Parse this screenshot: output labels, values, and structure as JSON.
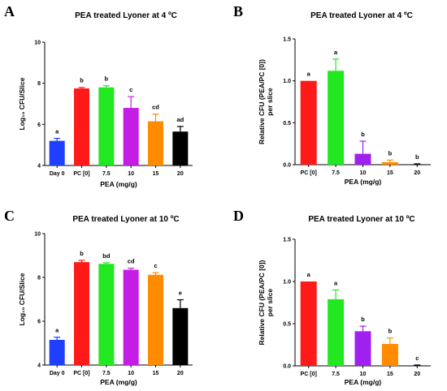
{
  "chart_data": [
    {
      "panel": "A",
      "type": "bar",
      "title": "PEA treated Lyoner at 4 ºC",
      "xlabel": "PEA (mg/g)",
      "ylabel": "Log₁₀ CFU/Slice",
      "ylim": [
        4,
        10
      ],
      "yticks": [
        "4",
        "6",
        "8",
        "10"
      ],
      "categories": [
        "Day 0",
        "PC [0]",
        "7.5",
        "10",
        "15",
        "20"
      ],
      "values": [
        5.2,
        7.75,
        7.8,
        6.8,
        6.15,
        5.65
      ],
      "errors": [
        0.12,
        0.05,
        0.08,
        0.55,
        0.35,
        0.25
      ],
      "significance": [
        "a",
        "b",
        "b",
        "c",
        "cd",
        "ad"
      ],
      "colors": [
        "#1f3fff",
        "#ff1a1a",
        "#22e822",
        "#c41ee6",
        "#ff8c00",
        "#000000"
      ]
    },
    {
      "panel": "B",
      "type": "bar",
      "title": "PEA treated Lyoner at 4 ºC",
      "xlabel": "PEA (mg/g)",
      "ylabel": "Relative CFU (PEA/PC [0])\nper slice",
      "ylim": [
        0,
        1.5
      ],
      "yticks": [
        "0.0",
        "0.5",
        "1.0",
        "1.5"
      ],
      "categories": [
        "PC [0]",
        "7.5",
        "10",
        "15",
        "20"
      ],
      "values": [
        1.0,
        1.12,
        0.13,
        0.03,
        0.005
      ],
      "errors": [
        0.0,
        0.14,
        0.15,
        0.025,
        0.005
      ],
      "significance": [
        "a",
        "a",
        "b",
        "b",
        "b"
      ],
      "colors": [
        "#ff1a1a",
        "#22e822",
        "#a020f0",
        "#ff8c00",
        "#000000"
      ]
    },
    {
      "panel": "C",
      "type": "bar",
      "title": "PEA treated Lyoner at 10 ºC",
      "xlabel": "PEA (mg/g)",
      "ylabel": "Log₁₀ CFU/Slice",
      "ylim": [
        4,
        10
      ],
      "yticks": [
        "4",
        "6",
        "8",
        "10"
      ],
      "categories": [
        "Day 0",
        "PC [0]",
        "7.5",
        "10",
        "15",
        "20"
      ],
      "values": [
        5.15,
        8.7,
        8.62,
        8.35,
        8.12,
        6.6
      ],
      "errors": [
        0.12,
        0.08,
        0.05,
        0.07,
        0.1,
        0.38
      ],
      "significance": [
        "a",
        "b",
        "bd",
        "cd",
        "c",
        "e"
      ],
      "colors": [
        "#1f3fff",
        "#ff1a1a",
        "#22e822",
        "#c41ee6",
        "#ff8c00",
        "#000000"
      ]
    },
    {
      "panel": "D",
      "type": "bar",
      "title": "PEA treated Lyoner at 10 ºC",
      "xlabel": "PEA (mg/g)",
      "ylabel": "Relative CFU (PEA/PC [0])\nper slice",
      "ylim": [
        0,
        1.5
      ],
      "yticks": [
        "0.0",
        "0.5",
        "1.0",
        "1.5"
      ],
      "categories": [
        "PC [0]",
        "7.5",
        "10",
        "15",
        "20"
      ],
      "values": [
        1.0,
        0.79,
        0.41,
        0.26,
        0.005
      ],
      "errors": [
        0.0,
        0.11,
        0.06,
        0.07,
        0.005
      ],
      "significance": [
        "a",
        "a",
        "b",
        "b",
        "c"
      ],
      "colors": [
        "#ff1a1a",
        "#22e822",
        "#a020f0",
        "#ff8c00",
        "#000000"
      ]
    }
  ]
}
